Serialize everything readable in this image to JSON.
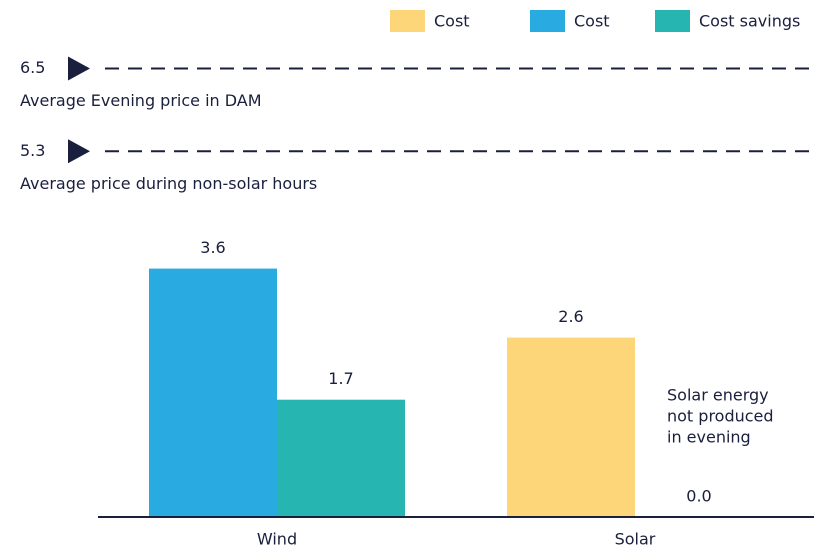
{
  "chart_data": {
    "type": "bar",
    "categories": [
      "Wind",
      "Solar"
    ],
    "series": [
      {
        "name": "Cost",
        "color": "#fcd679",
        "values": [
          null,
          2.6
        ],
        "value_labels": [
          null,
          "2.6"
        ]
      },
      {
        "name": "Cost",
        "color": "#29abe2",
        "values": [
          3.6,
          null
        ],
        "value_labels": [
          "3.6",
          null
        ]
      },
      {
        "name": "Cost savings",
        "color": "#26b5b0",
        "values": [
          1.7,
          0.0
        ],
        "value_labels": [
          "1.7",
          "0.0"
        ]
      }
    ],
    "ylim": [
      0,
      7
    ],
    "legend": "top-right",
    "reference_lines": [
      {
        "value": 6.5,
        "label": "Average Evening price in DAM",
        "color": "#1a1f3d"
      },
      {
        "value": 5.3,
        "label": "Average price during non-solar hours",
        "color": "#1a1f3d"
      }
    ],
    "annotation": [
      "Solar energy",
      "not produced",
      "in evening"
    ]
  }
}
